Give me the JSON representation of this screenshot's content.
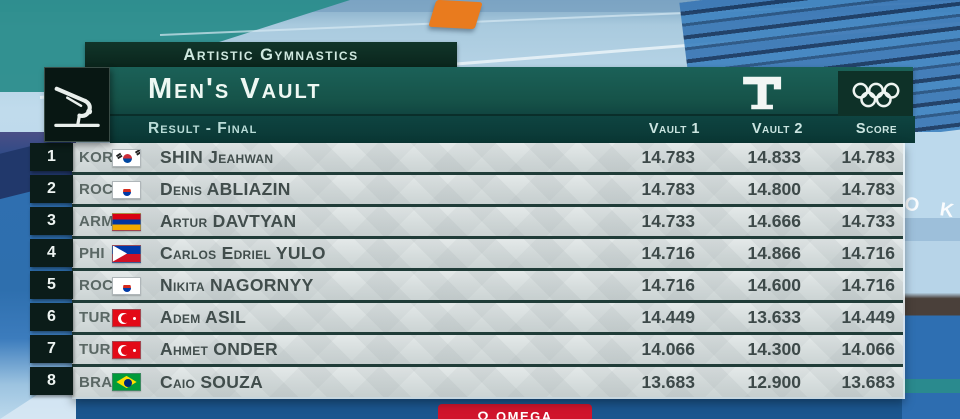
{
  "event_header": {
    "sport": "Artistic Gymnastics",
    "event": "Men's Vault",
    "phase": "Result - Final"
  },
  "columns": [
    {
      "key": "vault1",
      "label": "Vault 1"
    },
    {
      "key": "vault2",
      "label": "Vault 2"
    },
    {
      "key": "score",
      "label": "Score"
    }
  ],
  "rows": [
    {
      "rank": "1",
      "noc": "KOR",
      "flag": "kor",
      "name": "SHIN Jeahwan",
      "vault1": "14.783",
      "vault2": "14.833",
      "score": "14.783"
    },
    {
      "rank": "2",
      "noc": "ROC",
      "flag": "roc",
      "name": "Denis ABLIAZIN",
      "vault1": "14.783",
      "vault2": "14.800",
      "score": "14.783"
    },
    {
      "rank": "3",
      "noc": "ARM",
      "flag": "arm",
      "name": "Artur DAVTYAN",
      "vault1": "14.733",
      "vault2": "14.666",
      "score": "14.733"
    },
    {
      "rank": "4",
      "noc": "PHI",
      "flag": "phi",
      "name": "Carlos Edriel YULO",
      "vault1": "14.716",
      "vault2": "14.866",
      "score": "14.716"
    },
    {
      "rank": "5",
      "noc": "ROC",
      "flag": "roc",
      "name": "Nikita NAGORNYY",
      "vault1": "14.716",
      "vault2": "14.600",
      "score": "14.716"
    },
    {
      "rank": "6",
      "noc": "TUR",
      "flag": "tur",
      "name": "Adem ASIL",
      "vault1": "14.449",
      "vault2": "13.633",
      "score": "14.449"
    },
    {
      "rank": "7",
      "noc": "TUR",
      "flag": "tur",
      "name": "Ahmet ONDER",
      "vault1": "14.066",
      "vault2": "14.300",
      "score": "14.066"
    },
    {
      "rank": "8",
      "noc": "BRA",
      "flag": "bra",
      "name": "Caio SOUZA",
      "vault1": "13.683",
      "vault2": "12.900",
      "score": "13.683"
    }
  ],
  "footer": {
    "omega_symbol": "Ω",
    "timing_brand": "OMEGA"
  },
  "background": {
    "floor_text": "O K"
  },
  "colors": {
    "header_dark": "#0d2b20",
    "header_teal": "#165349",
    "subheader_teal": "#0d413f",
    "row_background": "#d6dddd",
    "row_separator": "#203c38",
    "rank_background": "#0b1c19",
    "springboard_orange": "#e97b1e",
    "omega_red": "#d0142c"
  }
}
